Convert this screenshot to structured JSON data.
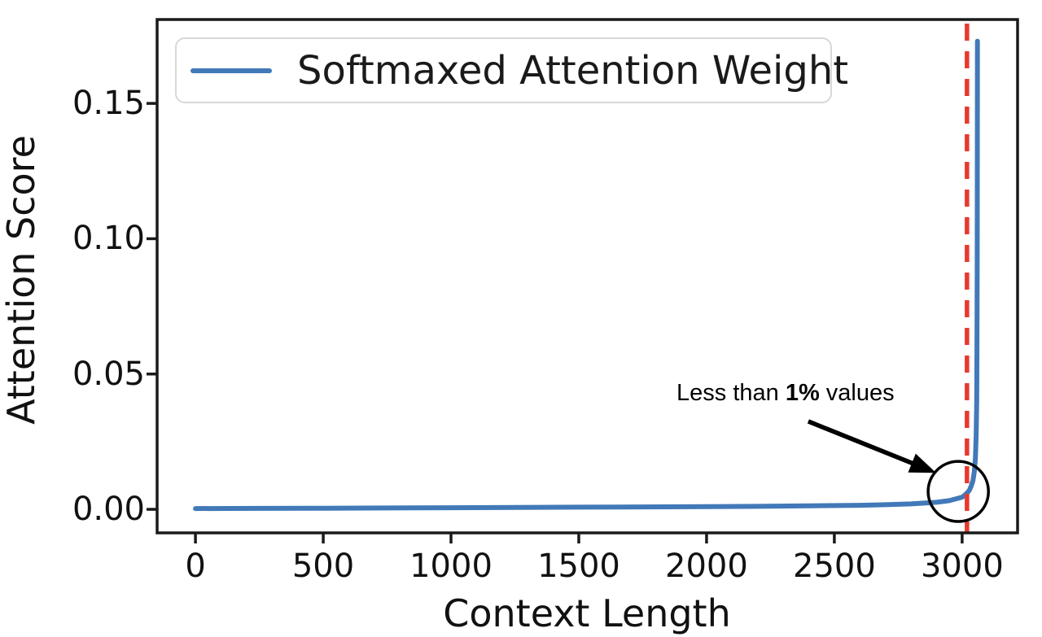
{
  "chart_data": {
    "type": "line",
    "title": "",
    "xlabel": "Context Length",
    "ylabel": "Attention Score",
    "xlim": [
      -150,
      3217
    ],
    "ylim": [
      -0.0087,
      0.181
    ],
    "grid": false,
    "xticks": {
      "values": [
        0,
        500,
        1000,
        1500,
        2000,
        2500,
        3000
      ],
      "labels": [
        "0",
        "500",
        "1000",
        "1500",
        "2000",
        "2500",
        "3000"
      ]
    },
    "yticks": {
      "values": [
        0.0,
        0.05,
        0.1,
        0.15
      ],
      "labels": [
        "0.00",
        "0.05",
        "0.10",
        "0.15"
      ]
    },
    "legend": {
      "position": "upper left",
      "entries": [
        {
          "label": "Softmaxed Attention Weight",
          "color": "#4279b8"
        }
      ]
    },
    "series": [
      {
        "name": "Softmaxed Attention Weight",
        "color": "#4279b8",
        "points": [
          [
            0,
            0.0003
          ],
          [
            250,
            0.00035
          ],
          [
            500,
            0.0004
          ],
          [
            750,
            0.0005
          ],
          [
            1000,
            0.0006
          ],
          [
            1250,
            0.0007
          ],
          [
            1500,
            0.0008
          ],
          [
            1750,
            0.0009
          ],
          [
            2000,
            0.001
          ],
          [
            2200,
            0.0011
          ],
          [
            2400,
            0.0013
          ],
          [
            2600,
            0.0015
          ],
          [
            2700,
            0.0017
          ],
          [
            2800,
            0.002
          ],
          [
            2900,
            0.0026
          ],
          [
            2950,
            0.0032
          ],
          [
            3000,
            0.0045
          ],
          [
            3010,
            0.0052
          ],
          [
            3019,
            0.006
          ],
          [
            3028,
            0.007
          ],
          [
            3035,
            0.0085
          ],
          [
            3042,
            0.0105
          ],
          [
            3048,
            0.014
          ],
          [
            3052,
            0.019
          ],
          [
            3055,
            0.027
          ],
          [
            3057,
            0.04
          ],
          [
            3058,
            0.06
          ],
          [
            3059,
            0.09
          ],
          [
            3060,
            0.173
          ]
        ]
      }
    ],
    "vline": {
      "x": 3019,
      "color": "#e8392e",
      "style": "dashed"
    },
    "annotation": {
      "text_prefix": "Less than ",
      "text_bold": "1%",
      "text_suffix": " values",
      "arrow": {
        "tail": [
          2398,
          0.0325
        ],
        "tip": [
          2898,
          0.0135
        ],
        "color": "#000000"
      },
      "circle": {
        "x": 2985,
        "y": 0.0066,
        "rx": 118,
        "ry": 0.0111,
        "color": "#000000"
      }
    },
    "colors": {
      "spine": "#1a1a1a",
      "tick": "#1a1a1a",
      "text": "#111111"
    }
  }
}
